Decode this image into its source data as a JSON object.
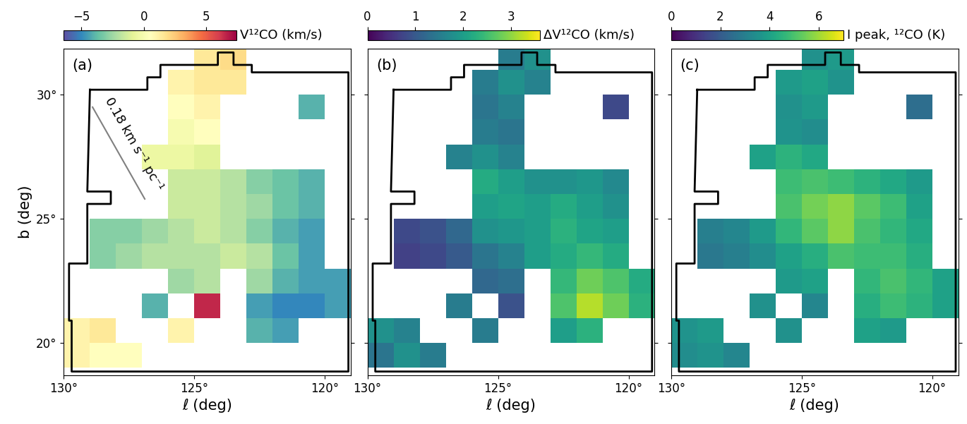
{
  "chart_data": [
    {
      "type": "heatmap",
      "panel_label": "(a)",
      "xlabel": "ℓ (deg)",
      "ylabel": "b (deg)",
      "xlim": [
        130,
        119
      ],
      "ylim": [
        18.7,
        31.85
      ],
      "xticks": [
        {
          "value": 130,
          "label": "130°"
        },
        {
          "value": 125,
          "label": "125°"
        },
        {
          "value": 120,
          "label": "120°"
        }
      ],
      "yticks": [
        {
          "value": 20,
          "label": "20°"
        },
        {
          "value": 25,
          "label": "25°"
        },
        {
          "value": 30,
          "label": "30°"
        }
      ],
      "tick_labels": true,
      "colorbar": {
        "label": "V¹²CO (km/s)",
        "lim": [
          -6.4,
          7.4
        ],
        "ticks": [
          {
            "value": -5,
            "label": "−5"
          },
          0,
          5
        ]
      },
      "boundary": {
        "l": [
          129.0,
          126.8,
          126.8,
          126.3,
          126.3,
          124.1,
          124.1,
          123.5,
          123.5,
          122.8,
          122.8,
          119.1,
          119.1,
          129.7,
          129.7,
          129.8,
          129.8,
          129.1,
          129.1,
          128.2,
          128.2,
          129.1,
          129.0
        ],
        "b": [
          30.2,
          30.2,
          30.7,
          30.7,
          31.2,
          31.2,
          31.7,
          31.7,
          31.2,
          31.2,
          30.9,
          30.9,
          18.85,
          18.85,
          20.9,
          20.9,
          23.2,
          23.2,
          25.6,
          25.6,
          26.1,
          26.1,
          30.2
        ]
      },
      "annotation": {
        "text": "0.18 km s⁻¹ pc⁻¹",
        "l": [
          128.9,
          126.9
        ],
        "b": [
          29.5,
          25.8
        ]
      },
      "l_edges": [
        130,
        129,
        128,
        127,
        126,
        125,
        124,
        123,
        122,
        121,
        120,
        119
      ],
      "b_edges": [
        32,
        31,
        30,
        29,
        28,
        27,
        26,
        25,
        24,
        23,
        22,
        21,
        20,
        19
      ],
      "cells": [
        [
          null,
          null,
          null,
          null,
          null,
          1.5,
          2.0,
          null,
          null,
          null,
          null
        ],
        [
          null,
          null,
          null,
          null,
          1.0,
          1.5,
          1.5,
          null,
          null,
          null,
          null
        ],
        [
          null,
          null,
          null,
          null,
          0.5,
          1.0,
          null,
          null,
          null,
          -4.0,
          null
        ],
        [
          null,
          null,
          null,
          null,
          0.0,
          0.5,
          null,
          null,
          null,
          null,
          null
        ],
        [
          null,
          null,
          null,
          -0.5,
          -0.5,
          -1.0,
          null,
          null,
          null,
          null,
          null
        ],
        [
          null,
          null,
          null,
          null,
          -1.5,
          -1.5,
          -2.0,
          -3.0,
          -3.5,
          -4.0,
          null
        ],
        [
          null,
          null,
          null,
          null,
          -1.5,
          -1.5,
          -2.0,
          -2.5,
          -3.5,
          -4.0,
          null
        ],
        [
          null,
          -3.0,
          -3.0,
          -2.5,
          -2.0,
          -1.5,
          -2.0,
          -3.0,
          -4.0,
          -4.5,
          null
        ],
        [
          null,
          -3.0,
          -2.5,
          -2.0,
          -2.0,
          -2.0,
          -1.5,
          -2.0,
          -3.5,
          -4.5,
          null
        ],
        [
          null,
          null,
          null,
          null,
          -2.5,
          -2.0,
          null,
          -2.5,
          -4.0,
          -4.5,
          -4.5
        ],
        [
          null,
          null,
          null,
          -4.0,
          null,
          6.5,
          null,
          -4.5,
          -5.0,
          -5.0,
          -4.5
        ],
        [
          1.0,
          1.5,
          null,
          null,
          1.0,
          null,
          null,
          -4.0,
          -4.5,
          null,
          null
        ],
        [
          1.0,
          0.5,
          0.5,
          null,
          null,
          null,
          null,
          null,
          null,
          null,
          null
        ]
      ]
    },
    {
      "type": "heatmap",
      "panel_label": "(b)",
      "xlabel": "ℓ (deg)",
      "xlim": [
        130,
        119
      ],
      "ylim": [
        18.7,
        31.85
      ],
      "xticks": [
        {
          "value": 130,
          "label": "130°"
        },
        {
          "value": 125,
          "label": "125°"
        },
        {
          "value": 120,
          "label": "120°"
        }
      ],
      "yticks": [
        20,
        25,
        30
      ],
      "tick_labels": "x",
      "colorbar": {
        "label": "ΔV¹²CO (km/s)",
        "lim": [
          0,
          3.6
        ],
        "ticks": [
          0,
          1,
          2,
          3
        ]
      },
      "boundary": {
        "l": [
          129.0,
          126.8,
          126.8,
          126.3,
          126.3,
          124.1,
          124.1,
          123.5,
          123.5,
          122.8,
          122.8,
          119.1,
          119.1,
          129.7,
          129.7,
          129.8,
          129.8,
          129.1,
          129.1,
          128.2,
          128.2,
          129.1,
          129.0
        ],
        "b": [
          30.2,
          30.2,
          30.7,
          30.7,
          31.2,
          31.2,
          31.7,
          31.7,
          31.2,
          31.2,
          30.9,
          30.9,
          18.85,
          18.85,
          20.9,
          20.9,
          23.2,
          23.2,
          25.6,
          25.6,
          26.1,
          26.1,
          30.2
        ]
      },
      "l_edges": [
        130,
        129,
        128,
        127,
        126,
        125,
        124,
        123,
        122,
        121,
        120,
        119
      ],
      "b_edges": [
        32,
        31,
        30,
        29,
        28,
        27,
        26,
        25,
        24,
        23,
        22,
        21,
        20,
        19
      ],
      "cells": [
        [
          null,
          null,
          null,
          null,
          null,
          1.5,
          1.8,
          null,
          null,
          null,
          null
        ],
        [
          null,
          null,
          null,
          null,
          1.5,
          1.8,
          1.6,
          null,
          null,
          null,
          null
        ],
        [
          null,
          null,
          null,
          null,
          1.4,
          1.6,
          null,
          null,
          null,
          0.8,
          null
        ],
        [
          null,
          null,
          null,
          null,
          1.5,
          1.4,
          null,
          null,
          null,
          null,
          null
        ],
        [
          null,
          null,
          null,
          1.6,
          1.8,
          1.6,
          null,
          null,
          null,
          null,
          null
        ],
        [
          null,
          null,
          null,
          null,
          2.2,
          2.0,
          1.8,
          1.8,
          1.9,
          1.7,
          null
        ],
        [
          null,
          null,
          null,
          null,
          2.0,
          2.1,
          2.0,
          2.2,
          2.0,
          1.8,
          null
        ],
        [
          null,
          0.8,
          0.9,
          1.2,
          1.8,
          1.9,
          2.0,
          2.3,
          2.1,
          2.0,
          null
        ],
        [
          null,
          0.7,
          0.8,
          1.0,
          1.4,
          1.6,
          2.0,
          2.2,
          2.4,
          2.2,
          null
        ],
        [
          null,
          null,
          null,
          null,
          1.2,
          1.3,
          null,
          2.4,
          2.8,
          2.6,
          2.2
        ],
        [
          null,
          null,
          null,
          1.5,
          null,
          0.9,
          null,
          2.6,
          3.2,
          2.8,
          2.3
        ],
        [
          1.8,
          1.6,
          null,
          null,
          1.5,
          null,
          null,
          2.0,
          2.3,
          null,
          null
        ],
        [
          1.4,
          1.8,
          1.5,
          null,
          null,
          null,
          null,
          null,
          null,
          null,
          null
        ]
      ]
    },
    {
      "type": "heatmap",
      "panel_label": "(c)",
      "xlabel": "ℓ (deg)",
      "xlim": [
        130,
        119
      ],
      "ylim": [
        18.7,
        31.85
      ],
      "xticks": [
        {
          "value": 130,
          "label": "130°"
        },
        {
          "value": 125,
          "label": "125°"
        },
        {
          "value": 120,
          "label": "120°"
        }
      ],
      "yticks": [
        20,
        25,
        30
      ],
      "tick_labels": "x",
      "colorbar": {
        "label": "I peak, ¹²CO (K)",
        "lim": [
          0,
          7
        ],
        "ticks": [
          0,
          2,
          4,
          6
        ]
      },
      "boundary": {
        "l": [
          129.0,
          126.8,
          126.8,
          126.3,
          126.3,
          124.1,
          124.1,
          123.5,
          123.5,
          122.8,
          122.8,
          119.1,
          119.1,
          129.7,
          129.7,
          129.8,
          129.8,
          129.1,
          129.1,
          128.2,
          128.2,
          129.1,
          129.0
        ],
        "b": [
          30.2,
          30.2,
          30.7,
          30.7,
          31.2,
          31.2,
          31.7,
          31.7,
          31.2,
          31.2,
          30.9,
          30.9,
          18.85,
          18.85,
          20.9,
          20.9,
          23.2,
          23.2,
          25.6,
          25.6,
          26.1,
          26.1,
          30.2
        ]
      },
      "l_edges": [
        130,
        129,
        128,
        127,
        126,
        125,
        124,
        123,
        122,
        121,
        120,
        119
      ],
      "b_edges": [
        32,
        31,
        30,
        29,
        28,
        27,
        26,
        25,
        24,
        23,
        22,
        21,
        20,
        19
      ],
      "cells": [
        [
          null,
          null,
          null,
          null,
          null,
          3.5,
          3.8,
          null,
          null,
          null,
          null
        ],
        [
          null,
          null,
          null,
          null,
          3.8,
          4.0,
          3.6,
          null,
          null,
          null,
          null
        ],
        [
          null,
          null,
          null,
          null,
          3.5,
          3.8,
          null,
          null,
          null,
          2.5,
          null
        ],
        [
          null,
          null,
          null,
          null,
          3.6,
          3.4,
          null,
          null,
          null,
          null,
          null
        ],
        [
          null,
          null,
          null,
          4.0,
          4.5,
          4.2,
          null,
          null,
          null,
          null,
          null
        ],
        [
          null,
          null,
          null,
          null,
          4.8,
          5.0,
          4.8,
          4.5,
          4.2,
          3.8,
          null
        ],
        [
          null,
          null,
          null,
          null,
          5.0,
          5.5,
          5.8,
          5.2,
          4.8,
          4.0,
          null
        ],
        [
          null,
          3.0,
          3.2,
          3.8,
          4.6,
          5.2,
          5.8,
          5.0,
          4.6,
          4.2,
          null
        ],
        [
          null,
          2.8,
          3.0,
          3.4,
          4.0,
          4.4,
          5.0,
          4.8,
          4.8,
          4.4,
          null
        ],
        [
          null,
          null,
          null,
          null,
          3.8,
          4.0,
          null,
          4.6,
          5.0,
          4.6,
          4.0
        ],
        [
          null,
          null,
          null,
          3.5,
          null,
          3.2,
          null,
          4.4,
          4.8,
          4.5,
          4.0
        ],
        [
          3.6,
          3.8,
          null,
          null,
          3.5,
          null,
          null,
          4.0,
          3.8,
          null,
          null
        ],
        [
          3.4,
          3.6,
          3.2,
          null,
          null,
          null,
          null,
          null,
          null,
          null,
          null
        ]
      ]
    }
  ]
}
